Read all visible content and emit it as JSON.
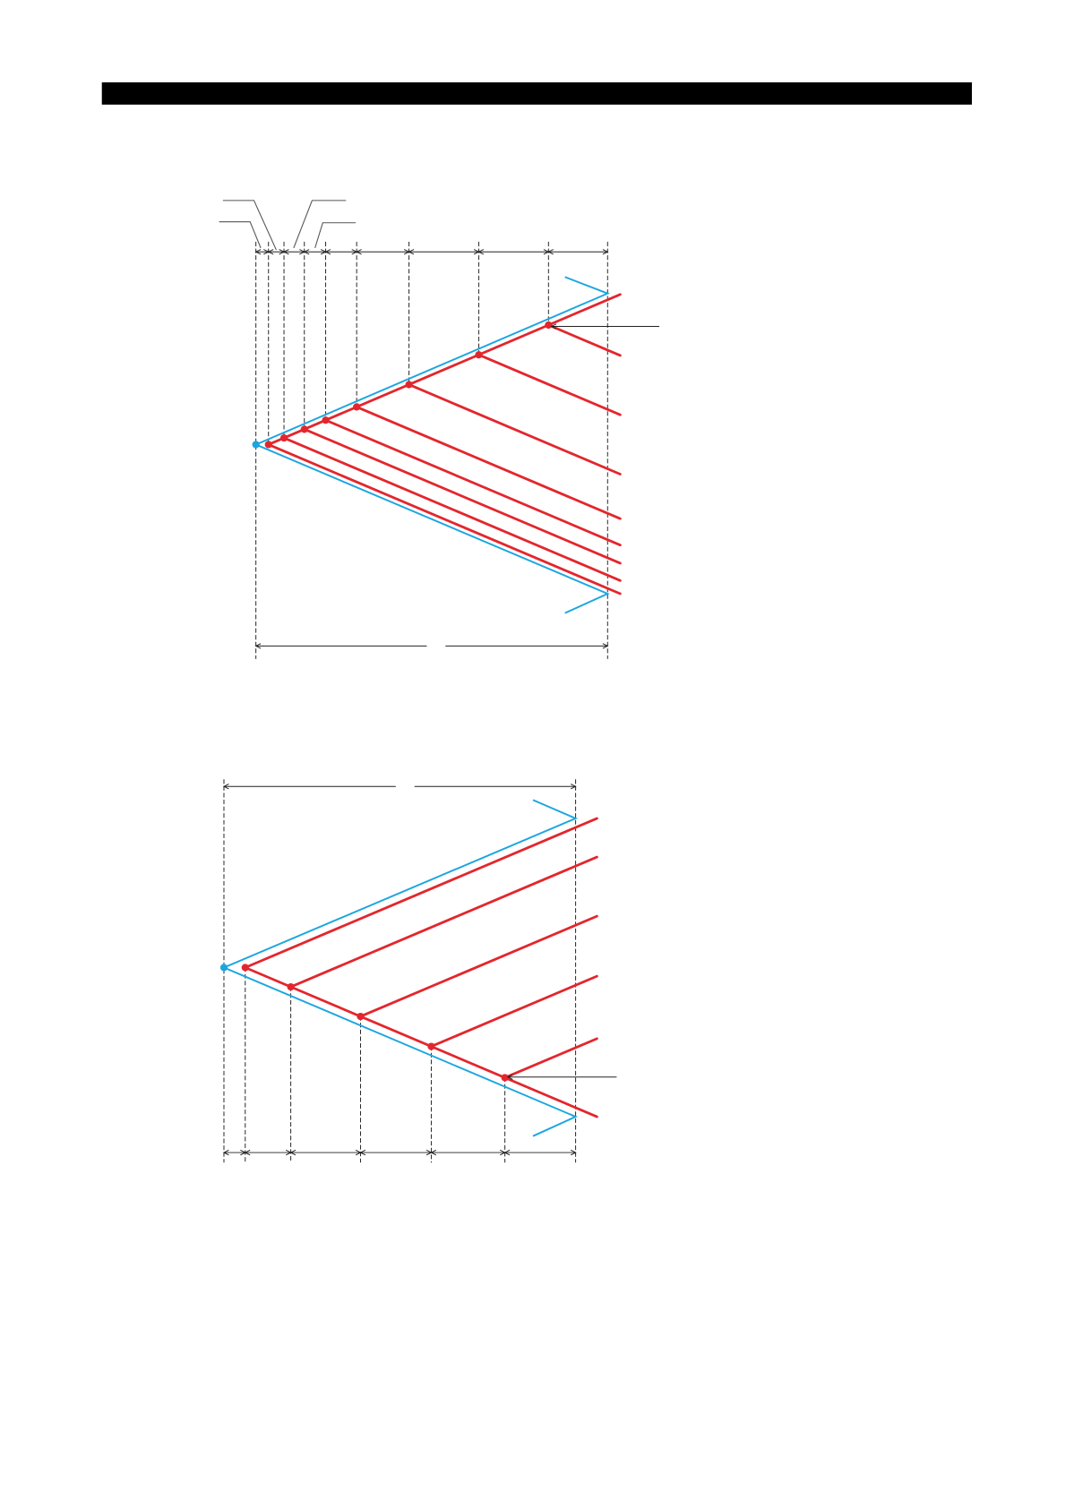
{
  "colors": {
    "header_bar": "#000000",
    "boundary": "#1ba6e0",
    "branch": "#e3262d",
    "dimension": "#222222"
  }
}
